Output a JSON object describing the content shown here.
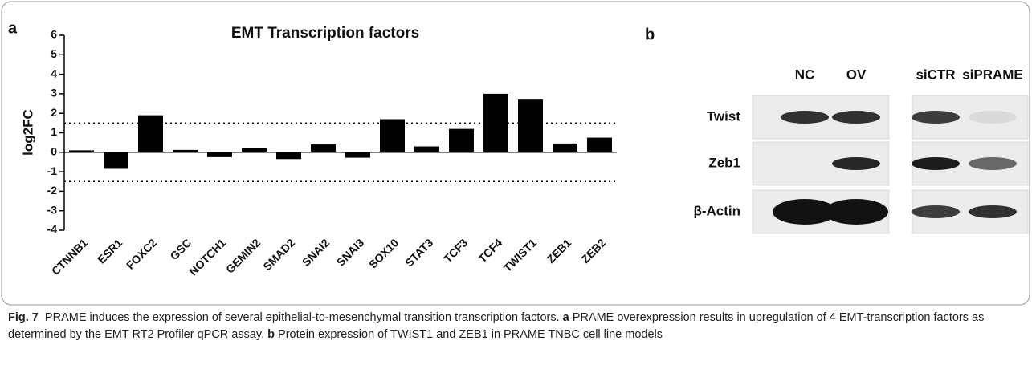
{
  "chart_data": {
    "type": "bar",
    "panel_label": "a",
    "title": "EMT Transcription factors",
    "y_label": "log2FC",
    "categories": [
      "CTNNB1",
      "ESR1",
      "FOXC2",
      "GSC",
      "NOTCH1",
      "GEMIN2",
      "SMAD2",
      "SNAI2",
      "SNAI3",
      "SOX10",
      "STAT3",
      "TCF3",
      "TCF4",
      "TWIST1",
      "ZEB1",
      "ZEB2"
    ],
    "values": [
      0.1,
      -0.85,
      1.9,
      0.12,
      -0.25,
      0.2,
      -0.35,
      0.4,
      -0.28,
      1.7,
      0.3,
      1.2,
      3.0,
      2.7,
      0.45,
      0.75
    ],
    "color": "#000000",
    "ylim": [
      -4,
      6
    ],
    "yticks": [
      -4,
      -3,
      -2,
      -1,
      0,
      1,
      2,
      3,
      4,
      5,
      6
    ],
    "reference_lines": [
      1.5,
      -1.5
    ],
    "grid": false
  },
  "blot": {
    "panel_label": "b",
    "lanes": [
      "NC",
      "OV",
      "siCTR",
      "siPRAME"
    ],
    "rows": [
      "Twist",
      "Zeb1",
      "β-Actin"
    ]
  },
  "caption": [
    {
      "text": "Fig. 7",
      "bold": true
    },
    {
      "text": "  PRAME induces the expression of several epithelial-to-mesenchymal transition transcription factors. ",
      "bold": false
    },
    {
      "text": "a",
      "bold": true
    },
    {
      "text": " PRAME overexpression results in upregulation of 4 EMT-transcription factors as determined by the EMT RT2 Profiler qPCR assay. ",
      "bold": false
    },
    {
      "text": "b",
      "bold": true
    },
    {
      "text": " Protein expression of TWIST1 and ZEB1 in PRAME TNBC cell line models",
      "bold": false
    }
  ]
}
